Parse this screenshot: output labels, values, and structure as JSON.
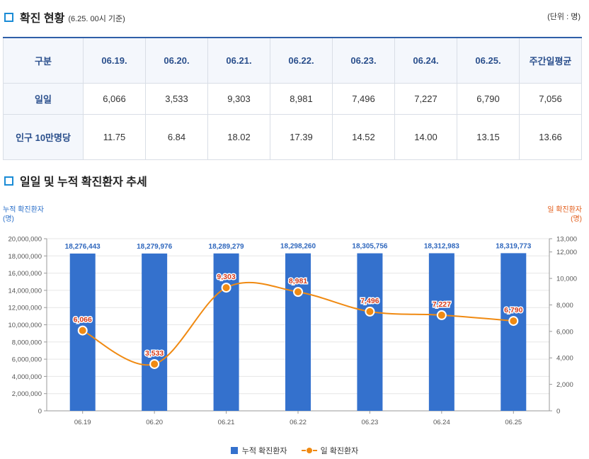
{
  "section1": {
    "title": "확진 현황",
    "subtitle": "(6.25. 00시 기준)",
    "unit": "(단위 : 명)"
  },
  "table": {
    "headers": [
      "구분",
      "06.19.",
      "06.20.",
      "06.21.",
      "06.22.",
      "06.23.",
      "06.24.",
      "06.25.",
      "주간일평균"
    ],
    "rows": [
      {
        "label": "일일",
        "values": [
          "6,066",
          "3,533",
          "9,303",
          "8,981",
          "7,496",
          "7,227",
          "6,790",
          "7,056"
        ]
      },
      {
        "label": "인구 10만명당",
        "values": [
          "11.75",
          "6.84",
          "18.02",
          "17.39",
          "14.52",
          "14.00",
          "13.15",
          "13.66"
        ]
      }
    ]
  },
  "section2": {
    "title": "일일 및 누적 확진환자 추세"
  },
  "chart_data": {
    "type": "bar",
    "categories": [
      "06.19",
      "06.20",
      "06.21",
      "06.22",
      "06.23",
      "06.24",
      "06.25"
    ],
    "series": [
      {
        "name": "누적 확진환자",
        "type": "bar",
        "axis": "left",
        "color": "#3471cd",
        "values": [
          18276443,
          18279976,
          18289279,
          18298260,
          18305756,
          18312983,
          18319773
        ],
        "labels": [
          "18,276,443",
          "18,279,976",
          "18,289,279",
          "18,298,260",
          "18,305,756",
          "18,312,983",
          "18,319,773"
        ]
      },
      {
        "name": "일 확진환자",
        "type": "line",
        "axis": "right",
        "color": "#f08a12",
        "values": [
          6066,
          3533,
          9303,
          8981,
          7496,
          7227,
          6790
        ],
        "labels": [
          "6,066",
          "3,533",
          "9,303",
          "8,981",
          "7,496",
          "7,227",
          "6,790"
        ]
      }
    ],
    "left_axis": {
      "label_line1": "누적 확진환자",
      "label_line2": "(명)",
      "ylim": [
        0,
        20000000
      ],
      "ticks": [
        "0",
        "2,000,000",
        "4,000,000",
        "6,000,000",
        "8,000,000",
        "10,000,000",
        "12,000,000",
        "14,000,000",
        "16,000,000",
        "18,000,000",
        "20,000,000"
      ]
    },
    "right_axis": {
      "label_line1": "일 확진환자",
      "label_line2": "(명)",
      "ylim": [
        0,
        13000
      ],
      "tick_values": [
        0,
        2000,
        4000,
        6000,
        8000,
        10000,
        12000,
        13000
      ],
      "ticks": [
        "0",
        "2,000",
        "4,000",
        "6,000",
        "8,000",
        "10,000",
        "12,000",
        "13,000"
      ]
    },
    "legend": [
      "누적 확진환자",
      "일 확진환자"
    ],
    "legend_position": "bottom"
  }
}
